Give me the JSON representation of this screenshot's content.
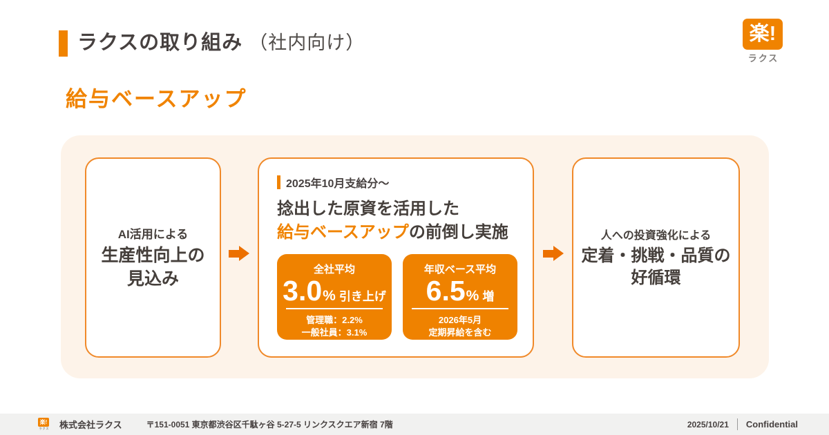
{
  "colors": {
    "accent_orange": "#f08300",
    "stat_box_orange": "#ef8200",
    "arrow_orange": "#ec7000",
    "container_peach": "#fdf3e9",
    "text_dark": "#453f3b",
    "footer_gray": "#f1f1f0"
  },
  "header": {
    "title": "ラクスの取り組み",
    "subtitle": "（社内向け）",
    "logo_main": "楽!",
    "logo_sub": "ラクス"
  },
  "section_heading": "給与ベースアップ",
  "flow": {
    "card1": {
      "line_small": "AI活用による",
      "line_big1": "生産性向上の",
      "line_big2": "見込み"
    },
    "card2": {
      "tag": "2025年10月支給分～",
      "title_line1": "捻出した原資を活用した",
      "title_highlight": "給与ベースアップ",
      "title_rest": "の前倒し実施",
      "stat1": {
        "label": "全社平均",
        "value": "3.0",
        "unit": "%",
        "suffix": "引き上げ",
        "note1": "管理職：2.2%",
        "note2": "一般社員：3.1%"
      },
      "stat2": {
        "label": "年収ベース平均",
        "value": "6.5",
        "unit": "%",
        "suffix": "増",
        "note1": "2026年5月",
        "note2": "定期昇給を含む"
      }
    },
    "card3": {
      "line_small": "人への投資強化による",
      "line_big1": "定着・挑戦・品質の",
      "line_big2": "好循環"
    }
  },
  "footer": {
    "logo_main": "楽!",
    "logo_sub": "ラクス",
    "company": "株式会社ラクス",
    "address": "〒151-0051 東京都渋谷区千駄ヶ谷 5-27-5 リンクスクエア新宿 7階",
    "date": "2025/10/21",
    "confidential": "Confidential"
  }
}
